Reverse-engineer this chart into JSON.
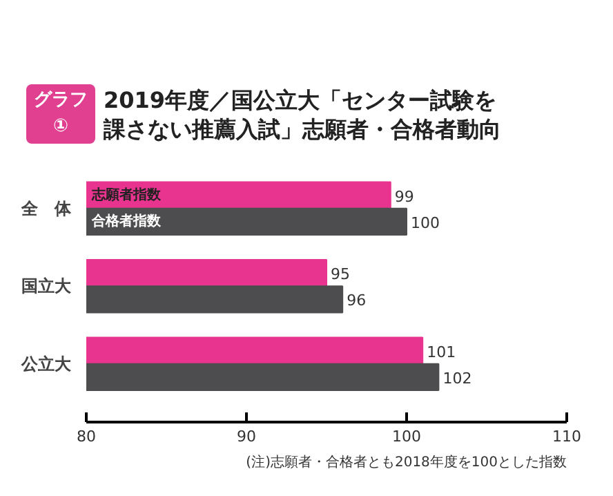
{
  "chart_data": {
    "type": "bar",
    "orientation": "horizontal",
    "title": "2019年度／国公立大「センター試験を課さない推薦入試」志願者・合格者動向",
    "categories": [
      "全　体",
      "国立大",
      "公立大"
    ],
    "series": [
      {
        "name": "志願者指数",
        "color": "#e8338f",
        "values": [
          99,
          95,
          101
        ]
      },
      {
        "name": "合格者指数",
        "color": "#4d4d4f",
        "values": [
          100,
          96,
          102
        ]
      }
    ],
    "xlim": [
      80,
      110
    ],
    "xticks": [
      80,
      90,
      100,
      110
    ],
    "grid": false,
    "data_labels": true,
    "annotations": [
      "グラフ①",
      "(注)志願者・合格者とも2018年度を100とした指数"
    ]
  }
}
